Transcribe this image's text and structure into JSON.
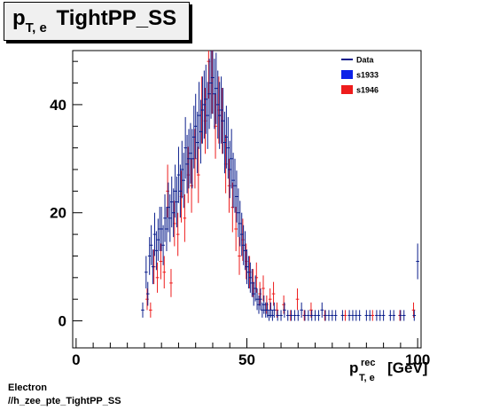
{
  "header": {
    "title_main": "p",
    "title_sub": "T, e",
    "title_rest": "TightPP_SS"
  },
  "footer": {
    "line1": "Electron",
    "line2": "//h_zee_pte_TightPP_SS"
  },
  "axis": {
    "x_base": "p",
    "x_sup": "rec",
    "x_sub": "T, e",
    "x_unit": "[GeV]"
  },
  "colors": {
    "data": "#0b1e8c",
    "s1933": "#0d22e8",
    "s1946": "#ee1c1c"
  },
  "chart_data": {
    "type": "scatter",
    "title": "p_T,e TightPP_SS",
    "xlabel": "p_T,e^rec [GeV]",
    "ylabel": "",
    "xlim": [
      -1,
      101
    ],
    "ylim": [
      -5,
      50
    ],
    "xticks": [
      0,
      50,
      100
    ],
    "yticks": [
      0,
      20,
      40
    ],
    "grid": false,
    "legend": {
      "position": "top-right",
      "entries": [
        {
          "label": "Data",
          "style": "line",
          "color": "#0b1e8c"
        },
        {
          "label": "s1933",
          "style": "box",
          "color": "#0d22e8"
        },
        {
          "label": "s1946",
          "style": "box",
          "color": "#ee1c1c"
        }
      ]
    },
    "series": [
      {
        "name": "s1933",
        "color": "#0b1e8c",
        "x": [
          19.5,
          20.5,
          21,
          21.5,
          22,
          22.5,
          23,
          23.5,
          24,
          24.5,
          25,
          25.5,
          26,
          26.5,
          27,
          27.5,
          28,
          28.5,
          29,
          29.5,
          30,
          30.5,
          31,
          31.5,
          32,
          32.5,
          33,
          33.5,
          34,
          34.5,
          35,
          35.5,
          36,
          36.5,
          37,
          37.5,
          38,
          38.5,
          39,
          39.5,
          40,
          40.5,
          41,
          41.5,
          42,
          42.5,
          43,
          43.5,
          44,
          44.5,
          45,
          45.5,
          46,
          46.5,
          47,
          47.5,
          48,
          48.5,
          49,
          49.5,
          50,
          50.5,
          51,
          51.5,
          52,
          52.5,
          53,
          53.5,
          54,
          54.5,
          55,
          55.5,
          56,
          56.5,
          57,
          57.5,
          58,
          59,
          60,
          61,
          62,
          63,
          64,
          65,
          66,
          67,
          68,
          69,
          70,
          71,
          72,
          73,
          74,
          75,
          76,
          78,
          80,
          81,
          82,
          83,
          85,
          86,
          88,
          89,
          90,
          92,
          93,
          95,
          96,
          99,
          100
        ],
        "y": [
          2,
          9,
          5,
          12,
          14,
          10,
          16,
          13,
          15,
          17,
          17,
          14,
          19,
          17,
          21,
          19,
          22,
          20,
          24,
          22,
          27,
          24,
          28,
          26,
          32,
          29,
          30,
          31,
          30,
          34,
          36,
          33,
          38,
          35,
          39,
          40,
          41,
          38,
          42,
          44,
          45,
          42,
          43,
          40,
          38,
          39,
          37,
          33,
          34,
          32,
          28,
          30,
          26,
          25,
          23,
          20,
          18,
          16,
          14,
          13,
          10,
          9,
          8,
          7,
          5,
          6,
          4,
          3,
          4,
          2,
          3,
          2,
          2,
          1,
          2,
          1,
          2,
          1,
          1,
          2,
          1,
          1,
          1,
          1,
          2,
          1,
          1,
          1,
          1,
          1,
          2,
          1,
          1,
          1,
          1,
          1,
          1,
          1,
          1,
          1,
          1,
          1,
          1,
          1,
          1,
          1,
          1,
          1,
          1,
          1,
          11
        ],
        "yerr": [
          1.4,
          3,
          2.2,
          3.5,
          3.7,
          3.2,
          4,
          3.6,
          3.9,
          4.1,
          4.1,
          3.7,
          4.4,
          4.1,
          4.6,
          4.4,
          4.7,
          4.5,
          4.9,
          4.7,
          5.2,
          4.9,
          5.3,
          5.1,
          5.7,
          5.4,
          5.5,
          5.6,
          5.5,
          5.8,
          6,
          5.7,
          6.2,
          5.9,
          6.2,
          6.3,
          6.4,
          6.2,
          6.5,
          6.6,
          6.7,
          6.5,
          6.6,
          6.3,
          6.2,
          6.2,
          6.1,
          5.7,
          5.8,
          5.7,
          5.3,
          5.5,
          5.1,
          5,
          4.8,
          4.5,
          4.2,
          4,
          3.7,
          3.6,
          3.2,
          3,
          2.8,
          2.6,
          2.2,
          2.4,
          2,
          1.7,
          2,
          1.4,
          1.7,
          1.4,
          1.4,
          1,
          1.4,
          1,
          1.4,
          1,
          1,
          1.4,
          1,
          1,
          1,
          1,
          1.4,
          1,
          1,
          1,
          1,
          1,
          1.4,
          1,
          1,
          1,
          1,
          1,
          1,
          1,
          1,
          1,
          1,
          1,
          1,
          1,
          1,
          1,
          1,
          1,
          1,
          1,
          3.3
        ]
      },
      {
        "name": "s1946",
        "color": "#ee1c1c",
        "x": [
          20.8,
          21.8,
          22.8,
          23.8,
          24.8,
          25.8,
          26.8,
          27.8,
          28.8,
          29.8,
          30.8,
          31.8,
          32.8,
          33.8,
          34.8,
          35.8,
          36.8,
          37.8,
          38.8,
          39.8,
          40.8,
          41.8,
          42.8,
          43.8,
          44.8,
          45.8,
          46.8,
          47.8,
          48.8,
          49.8,
          50.8,
          51.8,
          52.8,
          53.8,
          54.8,
          55.8,
          56.8,
          57.8,
          58.8,
          60.8,
          62.8,
          64.8,
          66.8,
          68.8,
          72.8,
          78.8,
          86.8,
          94.8,
          98.8
        ],
        "y": [
          4,
          2,
          10,
          8,
          11,
          9,
          24,
          7,
          18,
          16,
          23,
          19,
          27,
          25,
          30,
          27,
          39,
          37,
          48,
          45,
          36,
          39,
          37,
          29,
          25,
          21,
          17,
          12,
          15,
          11,
          9,
          7,
          8,
          5,
          6,
          3,
          4,
          5,
          2,
          3,
          1,
          4,
          1,
          2,
          1,
          1,
          1,
          1,
          2
        ],
        "yerr": [
          2,
          1.4,
          3.2,
          2.8,
          3.3,
          3,
          4.9,
          2.6,
          4.2,
          4,
          4.8,
          4.4,
          5.2,
          5,
          5.5,
          5.2,
          6.2,
          6.1,
          6.9,
          6.7,
          6,
          6.2,
          6.1,
          5.4,
          5,
          4.6,
          4.1,
          3.5,
          3.9,
          3.3,
          3,
          2.6,
          2.8,
          2.2,
          2.4,
          1.7,
          2,
          2.2,
          1.4,
          1.7,
          1,
          2,
          1,
          1.4,
          1,
          1,
          1,
          1,
          1.4
        ]
      }
    ]
  }
}
